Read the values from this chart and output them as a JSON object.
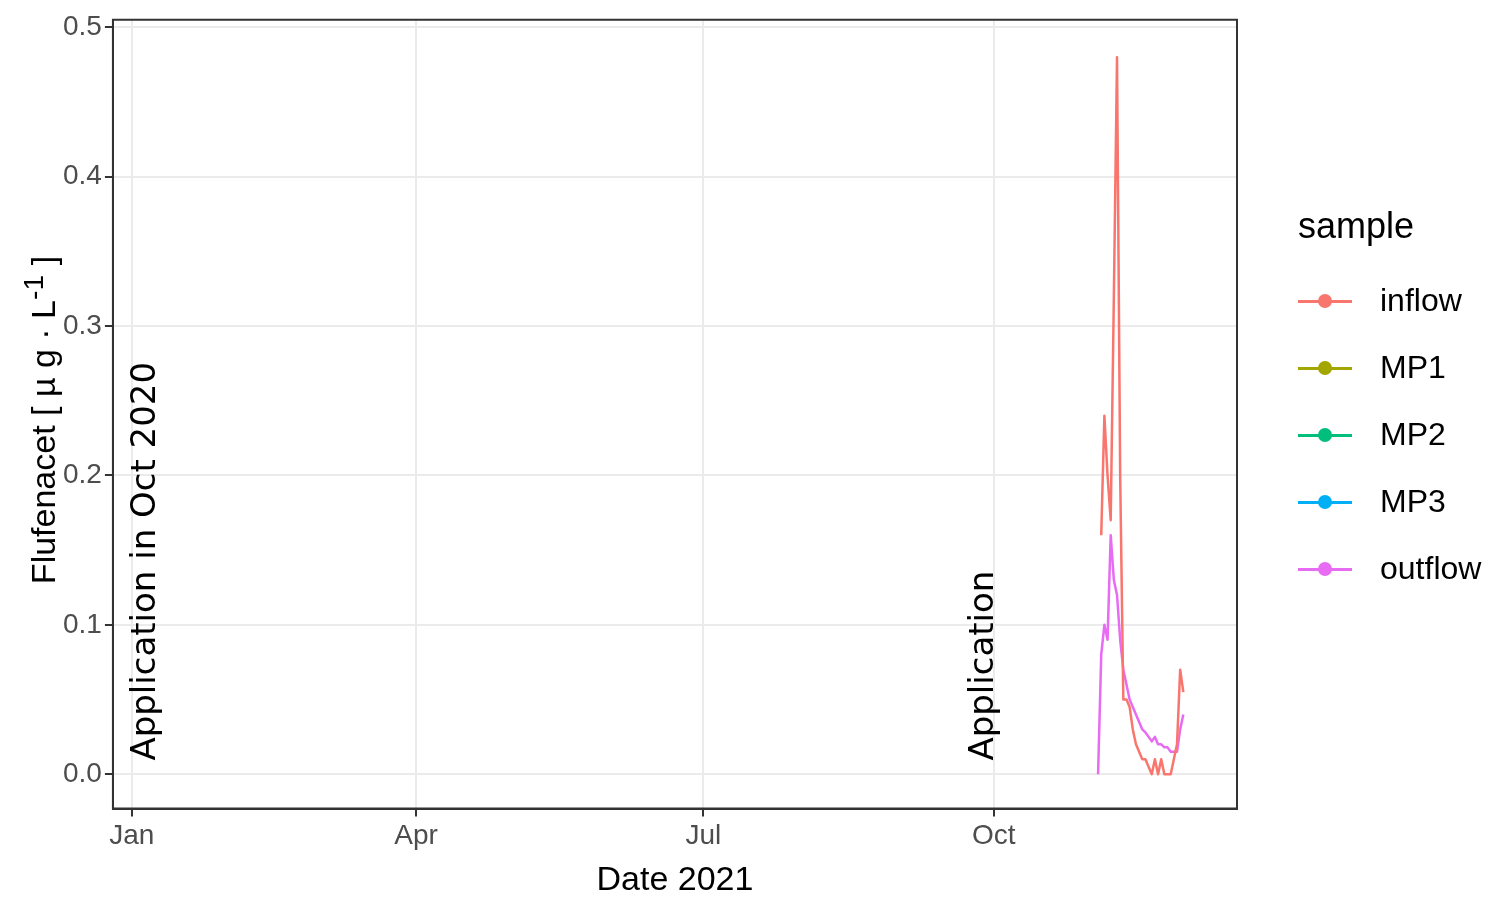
{
  "chart_data": {
    "type": "line",
    "xlabel": "Date 2021",
    "ylabel": "Flufenacet  [ µ g · L$^{-1}$ ]",
    "legend_title": "sample",
    "legend": "right",
    "grid": true,
    "marker": "none",
    "line_style": "solid",
    "xlim": [
      "2020-12-26",
      "2021-12-17"
    ],
    "xticks": [
      {
        "value": "2021-01-01",
        "label": "Jan"
      },
      {
        "value": "2021-04-01",
        "label": "Apr"
      },
      {
        "value": "2021-07-01",
        "label": "Jul"
      },
      {
        "value": "2021-10-01",
        "label": "Oct"
      }
    ],
    "ylim": [
      -0.023,
      0.505
    ],
    "yticks": [
      {
        "value": 0,
        "label": "0.0"
      },
      {
        "value": 0.1,
        "label": "0.1"
      },
      {
        "value": 0.2,
        "label": "0.2"
      },
      {
        "value": 0.3,
        "label": "0.3"
      },
      {
        "value": 0.4,
        "label": "0.4"
      },
      {
        "value": 0.5,
        "label": "0.5"
      }
    ],
    "annotations": [
      "Application in Oct 2020",
      "Application"
    ],
    "series": [
      {
        "name": "inflow",
        "color": "#f8766d",
        "x": [
          "2021-11-04",
          "2021-11-05",
          "2021-11-06",
          "2021-11-07",
          "2021-11-08",
          "2021-11-09",
          "2021-11-10",
          "2021-11-11",
          "2021-11-12",
          "2021-11-13",
          "2021-11-14",
          "2021-11-15",
          "2021-11-16",
          "2021-11-17",
          "2021-11-18",
          "2021-11-19",
          "2021-11-20",
          "2021-11-21",
          "2021-11-22",
          "2021-11-23",
          "2021-11-24",
          "2021-11-25",
          "2021-11-26",
          "2021-11-27",
          "2021-11-28",
          "2021-11-29",
          "2021-11-30"
        ],
        "values": [
          0.16,
          0.24,
          0.2,
          0.17,
          0.32,
          0.48,
          0.2,
          0.05,
          0.05,
          0.045,
          0.03,
          0.02,
          0.015,
          0.01,
          0.01,
          0.005,
          0,
          0.01,
          0,
          0.01,
          0,
          0,
          0,
          0.01,
          0.02,
          0.07,
          0.055
        ]
      },
      {
        "name": "MP1",
        "color": "#a3a500"
      },
      {
        "name": "MP2",
        "color": "#00bf7d"
      },
      {
        "name": "MP3",
        "color": "#00b0f6"
      },
      {
        "name": "outflow",
        "color": "#e76bf3",
        "x": [
          "2021-11-03",
          "2021-11-04",
          "2021-11-05",
          "2021-11-06",
          "2021-11-07",
          "2021-11-08",
          "2021-11-09",
          "2021-11-10",
          "2021-11-11",
          "2021-11-12",
          "2021-11-13",
          "2021-11-14",
          "2021-11-15",
          "2021-11-16",
          "2021-11-17",
          "2021-11-18",
          "2021-11-19",
          "2021-11-20",
          "2021-11-21",
          "2021-11-22",
          "2021-11-23",
          "2021-11-24",
          "2021-11-25",
          "2021-11-26",
          "2021-11-27",
          "2021-11-28",
          "2021-11-29",
          "2021-11-30"
        ],
        "values": [
          0,
          0.08,
          0.1,
          0.09,
          0.16,
          0.13,
          0.12,
          0.09,
          0.07,
          0.06,
          0.05,
          0.045,
          0.04,
          0.035,
          0.03,
          0.028,
          0.025,
          0.022,
          0.025,
          0.02,
          0.02,
          0.018,
          0.018,
          0.015,
          0.015,
          0.015,
          0.03,
          0.04
        ]
      }
    ]
  }
}
